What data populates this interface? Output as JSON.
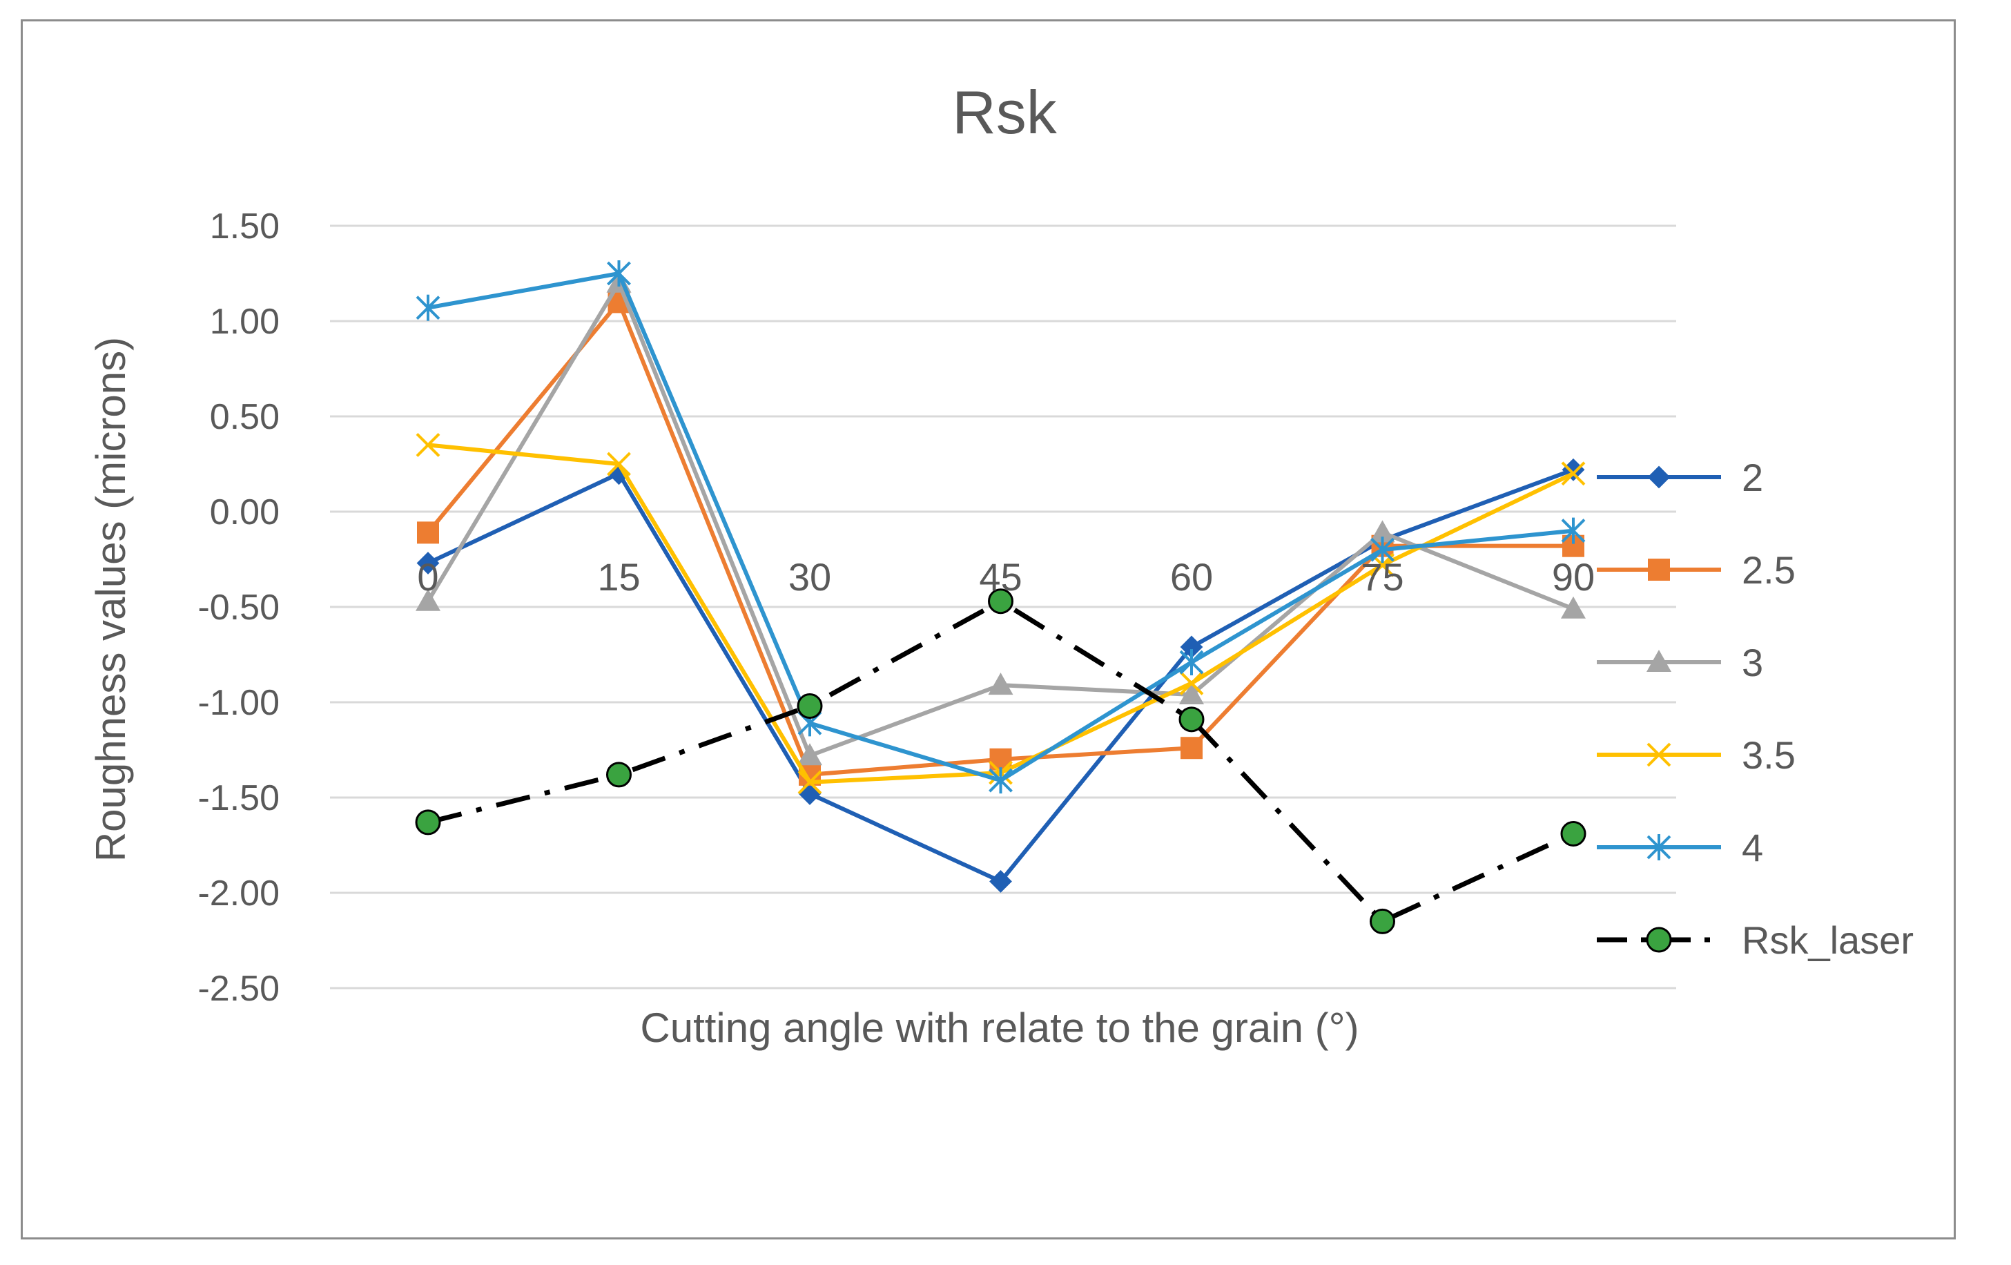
{
  "chart_data": {
    "type": "line",
    "title": "Rsk",
    "xlabel": "Cutting angle with relate to the grain (°)",
    "ylabel": "Roughness values (microns)",
    "categories": [
      "0",
      "15",
      "30",
      "45",
      "60",
      "75",
      "90"
    ],
    "ylim": [
      -2.5,
      1.5
    ],
    "yticks": [
      "1.50",
      "1.00",
      "0.50",
      "0.00",
      "-0.50",
      "-1.00",
      "-1.50",
      "-2.00",
      "-2.50"
    ],
    "grid": true,
    "legend": "right",
    "series": [
      {
        "name": "2",
        "values": [
          -0.27,
          0.2,
          -1.48,
          -1.94,
          -0.71,
          -0.15,
          0.22
        ],
        "color": "#1f5fb4",
        "marker": "diamond",
        "dash": "solid"
      },
      {
        "name": "2.5",
        "values": [
          -0.11,
          1.1,
          -1.38,
          -1.3,
          -1.24,
          -0.18,
          -0.18
        ],
        "color": "#ed7d31",
        "marker": "square",
        "dash": "solid"
      },
      {
        "name": "3",
        "values": [
          -0.47,
          1.2,
          -1.28,
          -0.91,
          -0.96,
          -0.11,
          -0.51
        ],
        "color": "#a5a5a5",
        "marker": "triangle",
        "dash": "solid"
      },
      {
        "name": "3.5",
        "values": [
          0.35,
          0.25,
          -1.42,
          -1.37,
          -0.9,
          -0.28,
          0.2
        ],
        "color": "#ffc000",
        "marker": "x",
        "dash": "solid"
      },
      {
        "name": "4",
        "values": [
          1.07,
          1.25,
          -1.11,
          -1.41,
          -0.79,
          -0.2,
          -0.1
        ],
        "color": "#2e94cf",
        "marker": "asterisk",
        "dash": "solid"
      },
      {
        "name": "Rsk_laser",
        "values": [
          -1.63,
          -1.38,
          -1.02,
          -0.47,
          -1.09,
          -2.15,
          -1.69
        ],
        "color": "#000000",
        "fill": "#3aa340",
        "marker": "circle",
        "dash": "dashdot"
      }
    ]
  }
}
